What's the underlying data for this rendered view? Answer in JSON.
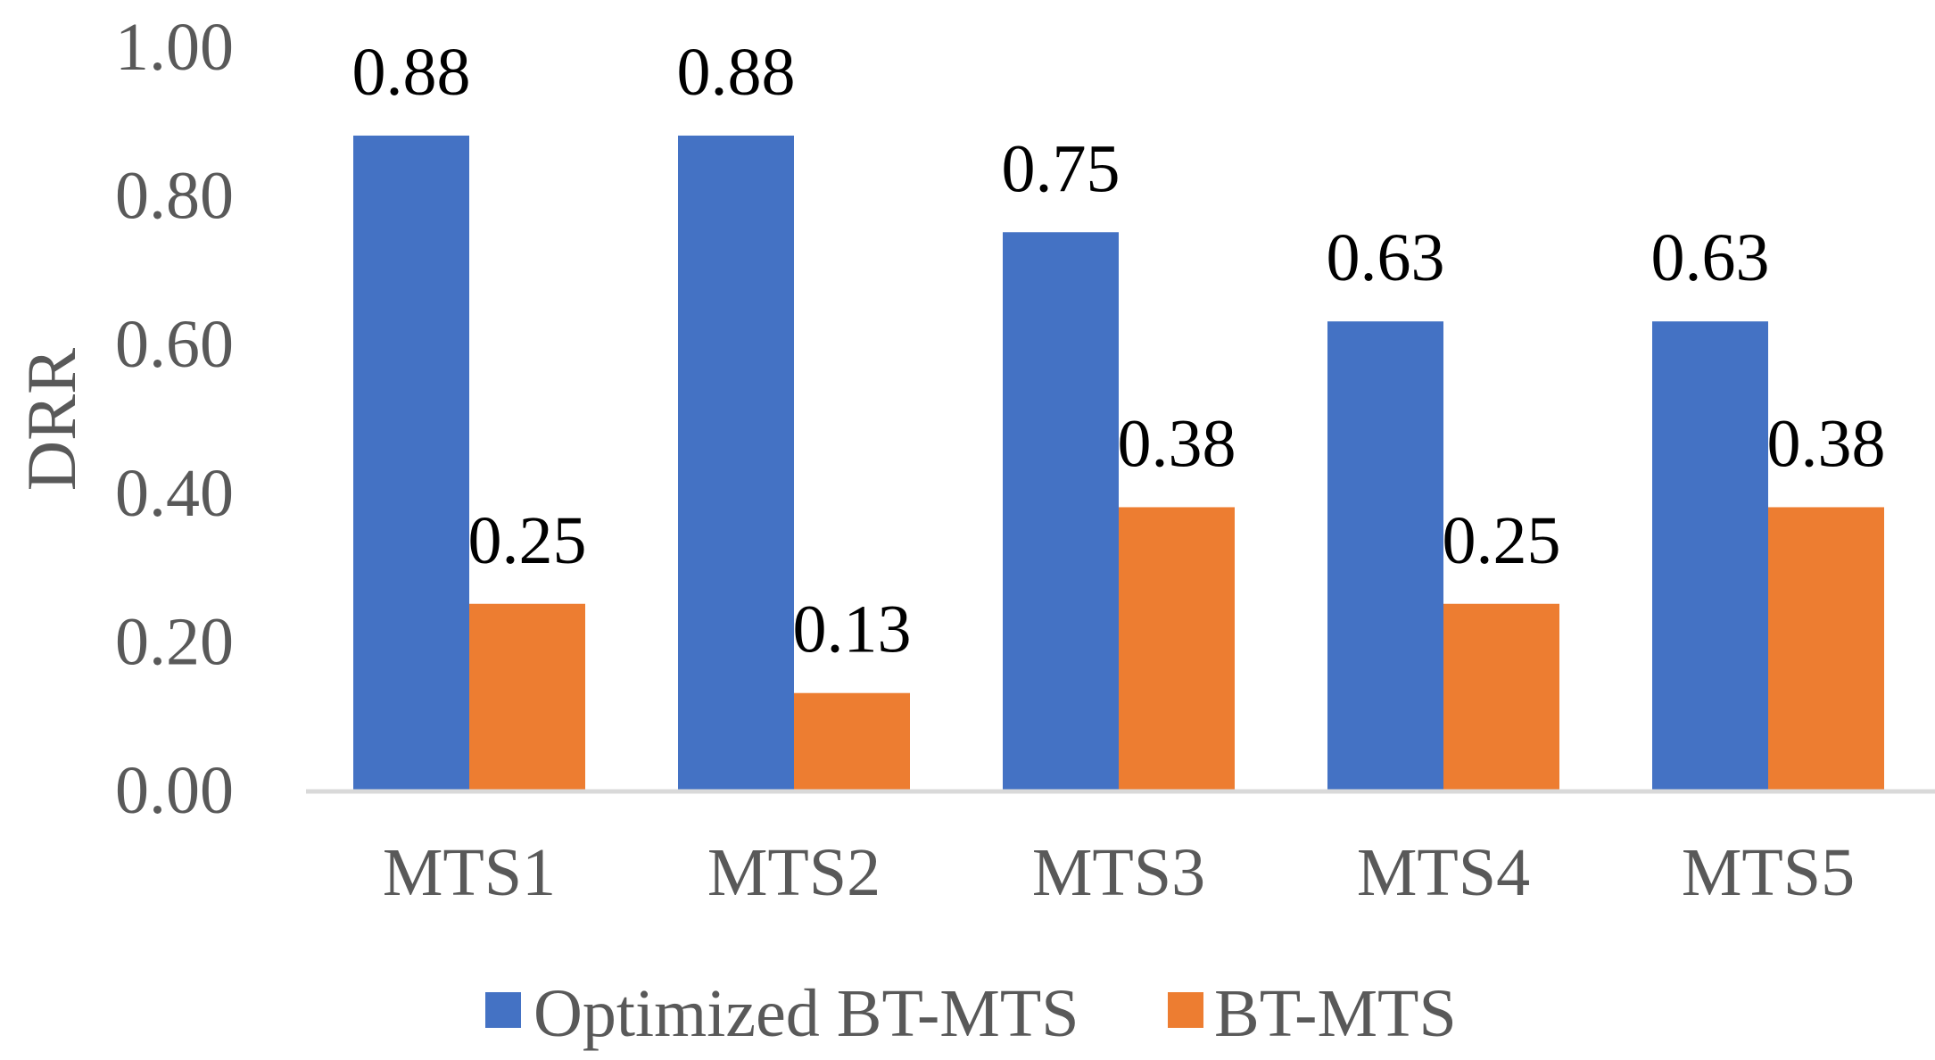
{
  "chart_data": {
    "type": "bar",
    "title": "",
    "xlabel": "",
    "ylabel": "DRR",
    "ylim": [
      0,
      1.0
    ],
    "yticks": [
      "0.00",
      "0.20",
      "0.40",
      "0.60",
      "0.80",
      "1.00"
    ],
    "grid": false,
    "legend_position": "bottom",
    "categories": [
      "MTS1",
      "MTS2",
      "MTS3",
      "MTS4",
      "MTS5"
    ],
    "series": [
      {
        "name": "Optimized BT-MTS",
        "color": "#4472C4",
        "values": [
          0.88,
          0.88,
          0.75,
          0.63,
          0.63
        ],
        "labels": [
          "0.88",
          "0.88",
          "0.75",
          "0.63",
          "0.63"
        ]
      },
      {
        "name": "BT-MTS",
        "color": "#ED7D31",
        "values": [
          0.25,
          0.13,
          0.38,
          0.25,
          0.38
        ],
        "labels": [
          "0.25",
          "0.13",
          "0.38",
          "0.25",
          "0.38"
        ]
      }
    ],
    "axis_color": "#D9D9D9"
  }
}
